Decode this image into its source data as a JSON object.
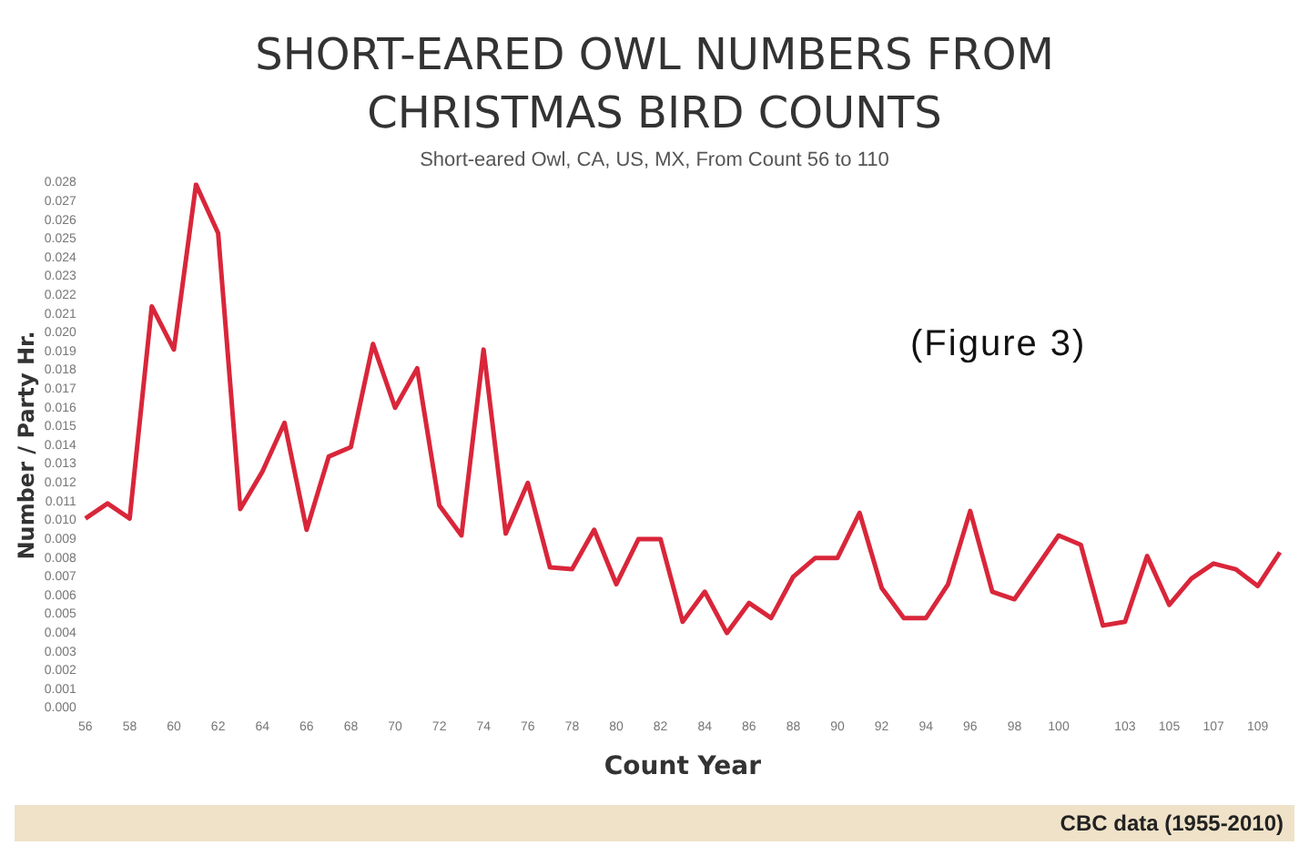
{
  "chart_data": {
    "type": "line",
    "title": "SHORT-EARED OWL NUMBERS FROM CHRISTMAS BIRD COUNTS",
    "subtitle": "Short-eared Owl, CA, US, MX,  From Count 56 to 110",
    "xlabel": "Count Year",
    "ylabel": "Number / Party Hr.",
    "annotations": [
      "(Figure 3)",
      "CBC data (1955-2010)"
    ],
    "categories": [
      "56",
      null,
      "58",
      null,
      "60",
      null,
      "62",
      null,
      "64",
      null,
      "66",
      null,
      "68",
      null,
      "70",
      null,
      "72",
      null,
      "74",
      null,
      "76",
      null,
      "78",
      null,
      "80",
      null,
      "82",
      null,
      "84",
      null,
      "86",
      null,
      "88",
      null,
      "90",
      null,
      "92",
      null,
      "94",
      null,
      "96",
      null,
      "98",
      null,
      "100",
      null,
      null,
      "103",
      null,
      "105",
      null,
      "107",
      null,
      "109",
      null
    ],
    "series": [
      {
        "color": "#d9263a",
        "values": [
          0.0101,
          0.0109,
          0.0101,
          0.0214,
          0.0191,
          0.0279,
          0.0253,
          0.0106,
          0.0126,
          0.0152,
          0.0095,
          0.0134,
          0.0139,
          0.0194,
          0.016,
          0.0181,
          0.0108,
          0.0092,
          0.0191,
          0.0093,
          0.012,
          0.0075,
          0.0074,
          0.0095,
          0.0066,
          0.009,
          0.009,
          0.0046,
          0.0062,
          0.004,
          0.0056,
          0.0048,
          0.007,
          0.008,
          0.008,
          0.0104,
          0.0064,
          0.0048,
          0.0048,
          0.0066,
          0.0105,
          0.0062,
          0.0058,
          0.0075,
          0.0092,
          0.0087,
          0.0044,
          0.0046,
          0.0081,
          0.0055,
          0.0069,
          0.0077,
          0.0074,
          0.0065,
          0.0083
        ]
      }
    ],
    "ylim": [
      0,
      0.028
    ],
    "yticks": [
      {
        "value": 0,
        "label": "0.000"
      },
      0.001,
      0.002,
      0.003,
      0.004,
      0.005,
      0.006,
      0.007,
      0.008,
      0.009,
      {
        "value": 0.01,
        "label": "0.010"
      },
      0.011,
      0.012,
      0.013,
      0.014,
      0.015,
      0.016,
      0.017,
      0.018,
      0.019,
      {
        "value": 0.02,
        "label": "0.020"
      },
      0.021,
      0.022,
      0.023,
      0.024,
      0.025,
      0.026,
      0.027,
      0.028
    ],
    "grid": false,
    "legend": false,
    "marker": "none",
    "line_style": "solid"
  }
}
